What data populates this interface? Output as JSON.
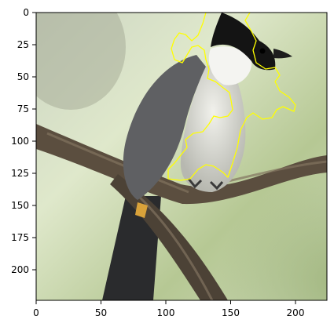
{
  "figure": {
    "x_ticks": [
      "0",
      "50",
      "100",
      "150",
      "200"
    ],
    "y_ticks": [
      "0",
      "25",
      "50",
      "75",
      "100",
      "125",
      "150",
      "175",
      "200"
    ],
    "xlim": [
      0,
      224
    ],
    "ylim": [
      224,
      0
    ]
  },
  "photo": {
    "subject": "crested bulbul perched on a branch",
    "colors": {
      "background_light": "#d9e3c4",
      "background_green": "#a9bf86",
      "bird_grey": "#8f8f8f",
      "bird_white": "#e9e9e4",
      "bird_black": "#141414",
      "branch": "#5b4e3f"
    }
  },
  "overlay": {
    "contour_color": "#ffff00"
  }
}
